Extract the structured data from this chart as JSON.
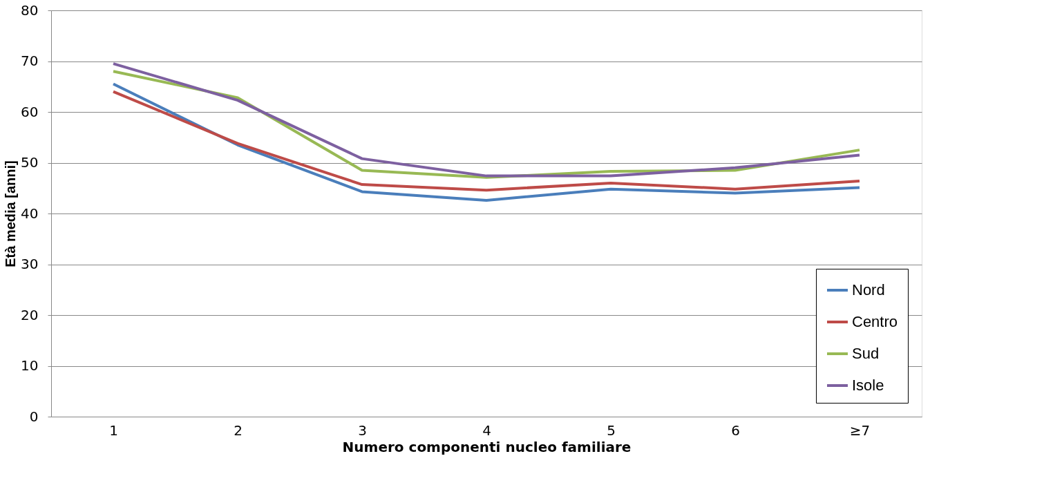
{
  "chart_data": {
    "type": "line",
    "xlabel": "Numero componenti nucleo familiare",
    "ylabel": "Età media [anni]",
    "categories": [
      "1",
      "2",
      "3",
      "4",
      "5",
      "6",
      "≥7"
    ],
    "series": [
      {
        "name": "Nord",
        "color": "#4a7ebb",
        "values": [
          65.5,
          53.5,
          44.3,
          42.6,
          44.8,
          44.0,
          45.1
        ]
      },
      {
        "name": "Centro",
        "color": "#be4b48",
        "values": [
          64.0,
          53.8,
          45.7,
          44.6,
          46.0,
          44.8,
          46.4
        ]
      },
      {
        "name": "Sud",
        "color": "#98b954",
        "values": [
          68.0,
          62.8,
          48.5,
          47.1,
          48.3,
          48.5,
          52.5
        ]
      },
      {
        "name": "Isole",
        "color": "#7d60a0",
        "values": [
          69.5,
          62.3,
          50.8,
          47.4,
          47.4,
          49.0,
          51.5
        ]
      }
    ],
    "ylim": [
      0,
      80
    ],
    "yticks": [
      0,
      10,
      20,
      30,
      40,
      50,
      60,
      70,
      80
    ],
    "grid": "y",
    "legend": "bottom right",
    "marker": "none",
    "line_style": "solid"
  }
}
